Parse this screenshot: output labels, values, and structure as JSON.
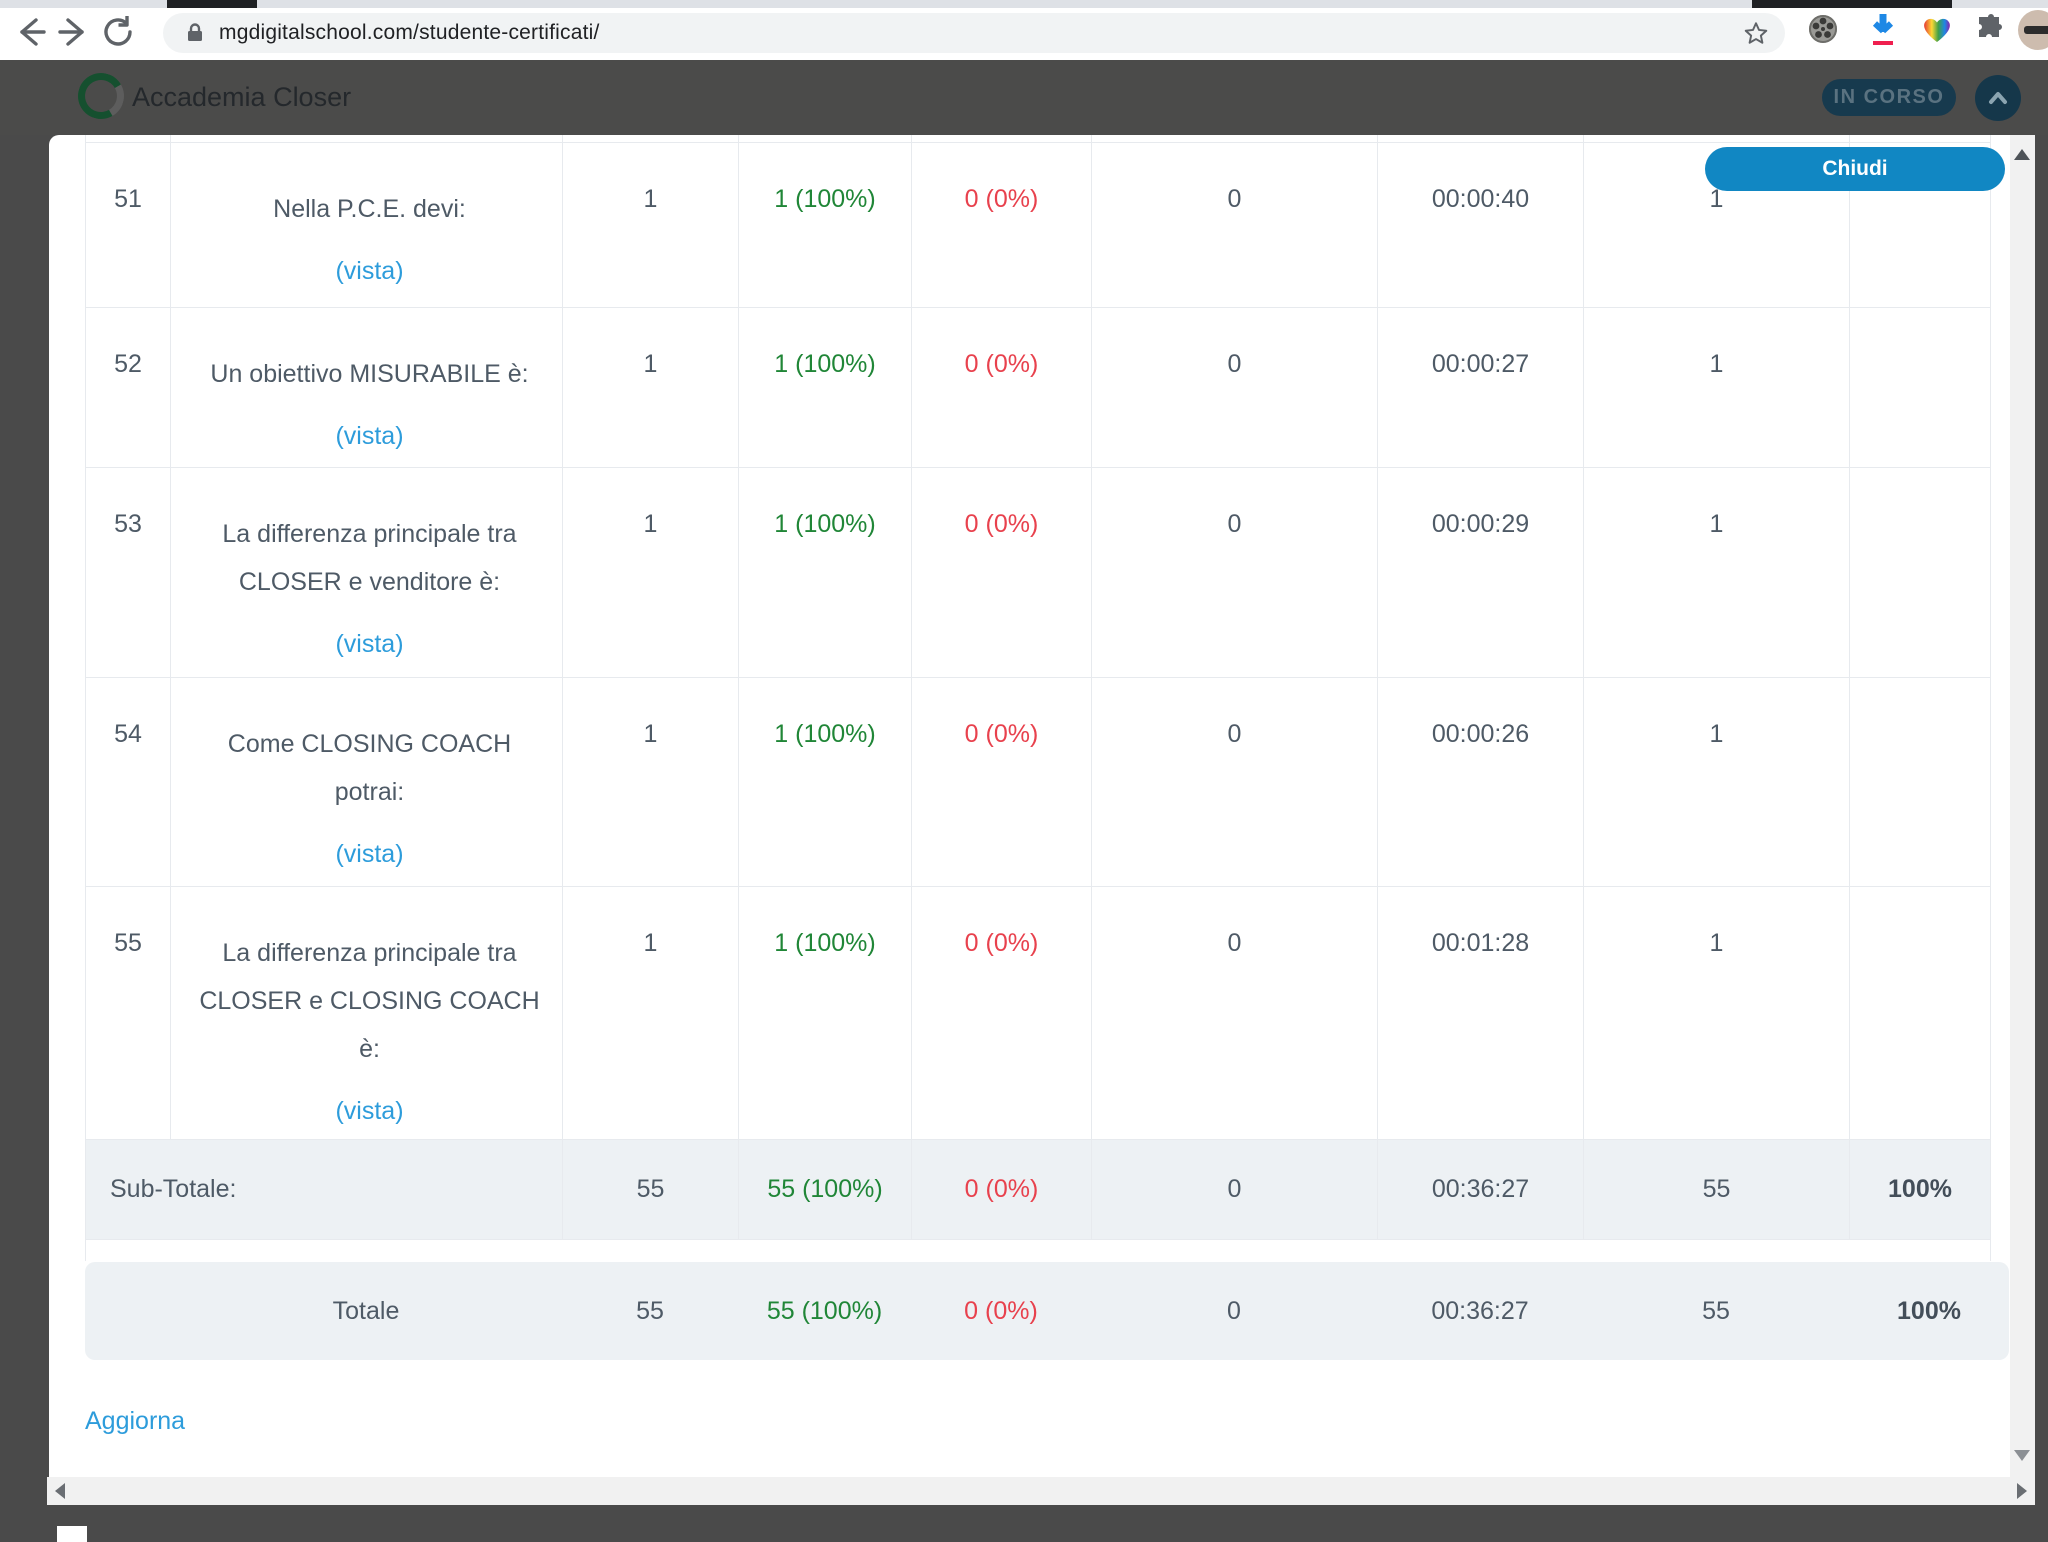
{
  "browser": {
    "url": "mgdigitalschool.com/studente-certificati/"
  },
  "header": {
    "title": "Accademia Closer",
    "status_badge": "IN CORSO"
  },
  "modal": {
    "close_label": "Chiudi",
    "refresh_label": "Aggiorna"
  },
  "table": {
    "rows": [
      {
        "num": "51",
        "question": "Nella P.C.E. devi:",
        "vista": "(vista)",
        "attempts": "1",
        "correct": "1 (100%)",
        "incorrect": "0 (0%)",
        "unanswered": "0",
        "time": "00:00:40",
        "score": "1",
        "extra": ""
      },
      {
        "num": "52",
        "question": "Un obiettivo MISURABILE è:",
        "vista": "(vista)",
        "attempts": "1",
        "correct": "1 (100%)",
        "incorrect": "0 (0%)",
        "unanswered": "0",
        "time": "00:00:27",
        "score": "1",
        "extra": ""
      },
      {
        "num": "53",
        "question": "La differenza principale tra\nCLOSER e venditore è:",
        "vista": "(vista)",
        "attempts": "1",
        "correct": "1 (100%)",
        "incorrect": "0 (0%)",
        "unanswered": "0",
        "time": "00:00:29",
        "score": "1",
        "extra": ""
      },
      {
        "num": "54",
        "question": "Come CLOSING COACH\npotrai:",
        "vista": "(vista)",
        "attempts": "1",
        "correct": "1 (100%)",
        "incorrect": "0 (0%)",
        "unanswered": "0",
        "time": "00:00:26",
        "score": "1",
        "extra": ""
      },
      {
        "num": "55",
        "question": "La differenza principale tra\nCLOSER e CLOSING COACH\nè:",
        "vista": "(vista)",
        "attempts": "1",
        "correct": "1 (100%)",
        "incorrect": "0 (0%)",
        "unanswered": "0",
        "time": "00:01:28",
        "score": "1",
        "extra": ""
      }
    ],
    "subtotal": {
      "label": "Sub-Totale:",
      "attempts": "55",
      "correct": "55 (100%)",
      "incorrect": "0 (0%)",
      "unanswered": "0",
      "time": "00:36:27",
      "score": "55",
      "percent": "100%"
    },
    "total": {
      "label": "Totale",
      "attempts": "55",
      "correct": "55 (100%)",
      "incorrect": "0 (0%)",
      "unanswered": "0",
      "time": "00:36:27",
      "score": "55",
      "percent": "100%"
    }
  },
  "colors": {
    "accent_blue": "#1187c3",
    "link_blue": "#2d9cdb",
    "success_green": "#208637",
    "error_red": "#e8414d",
    "badge_bg": "#173a4e",
    "header_bg": "#4b4b4a"
  }
}
